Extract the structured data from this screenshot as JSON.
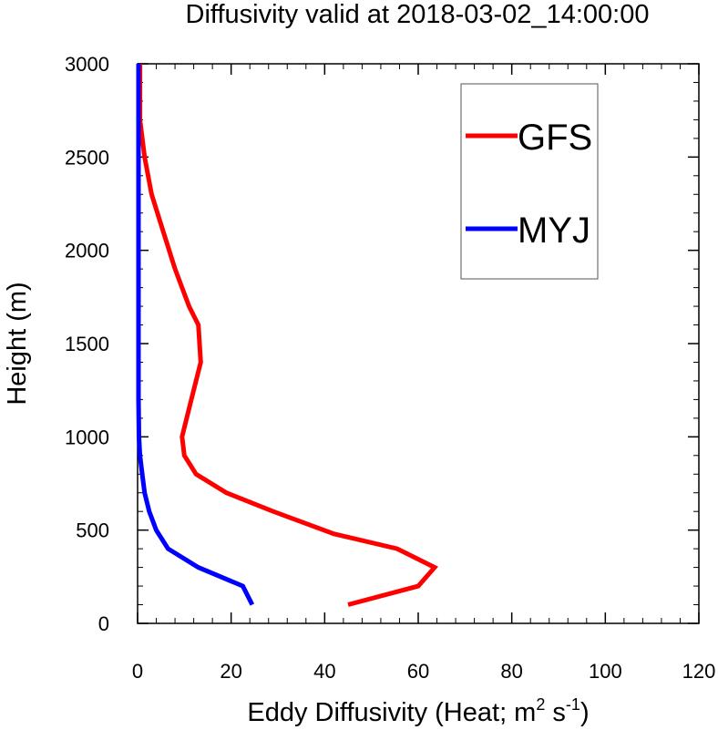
{
  "chart_data": {
    "type": "line",
    "title": "Diffusivity valid at 2018-03-02_14:00:00",
    "xlabel": {
      "prefix": "Eddy Diffusivity (Heat; m",
      "sup1": "2",
      "mid": " s",
      "sup2": "-1",
      "suffix": ")"
    },
    "ylabel": "Height (m)",
    "xlim": [
      0,
      120
    ],
    "ylim": [
      0,
      3000
    ],
    "xticks": [
      0,
      20,
      40,
      60,
      80,
      100,
      120
    ],
    "yticks": [
      0,
      500,
      1000,
      1500,
      2000,
      2500,
      3000
    ],
    "xtick_labels": [
      "0",
      "20",
      "40",
      "60",
      "80",
      "100",
      "120"
    ],
    "ytick_labels": [
      "0",
      "500",
      "1000",
      "1500",
      "2000",
      "2500",
      "3000"
    ],
    "grid": false,
    "legend_position": "top-right",
    "series": [
      {
        "name": "GFS",
        "color": "#ff0000",
        "points": [
          [
            45,
            100
          ],
          [
            60,
            200
          ],
          [
            63.5,
            300
          ],
          [
            55.5,
            400
          ],
          [
            42,
            480
          ],
          [
            29,
            600
          ],
          [
            19,
            700
          ],
          [
            12.5,
            800
          ],
          [
            10,
            900
          ],
          [
            9.5,
            1000
          ],
          [
            11.5,
            1200
          ],
          [
            13.5,
            1400
          ],
          [
            13,
            1600
          ],
          [
            11,
            1700
          ],
          [
            8,
            1900
          ],
          [
            5.5,
            2100
          ],
          [
            3,
            2300
          ],
          [
            1.5,
            2500
          ],
          [
            0.5,
            2700
          ],
          [
            0.5,
            3000
          ]
        ]
      },
      {
        "name": "MYJ",
        "color": "#0000ff",
        "points": [
          [
            24.5,
            100
          ],
          [
            22.5,
            200
          ],
          [
            13,
            300
          ],
          [
            6.5,
            400
          ],
          [
            4,
            500
          ],
          [
            2.5,
            600
          ],
          [
            1.5,
            700
          ],
          [
            1,
            800
          ],
          [
            0.5,
            900
          ],
          [
            0.3,
            1000
          ],
          [
            0.2,
            1200
          ],
          [
            0.2,
            1500
          ],
          [
            0.2,
            2000
          ],
          [
            0.2,
            2500
          ],
          [
            0.2,
            3000
          ]
        ]
      }
    ]
  }
}
